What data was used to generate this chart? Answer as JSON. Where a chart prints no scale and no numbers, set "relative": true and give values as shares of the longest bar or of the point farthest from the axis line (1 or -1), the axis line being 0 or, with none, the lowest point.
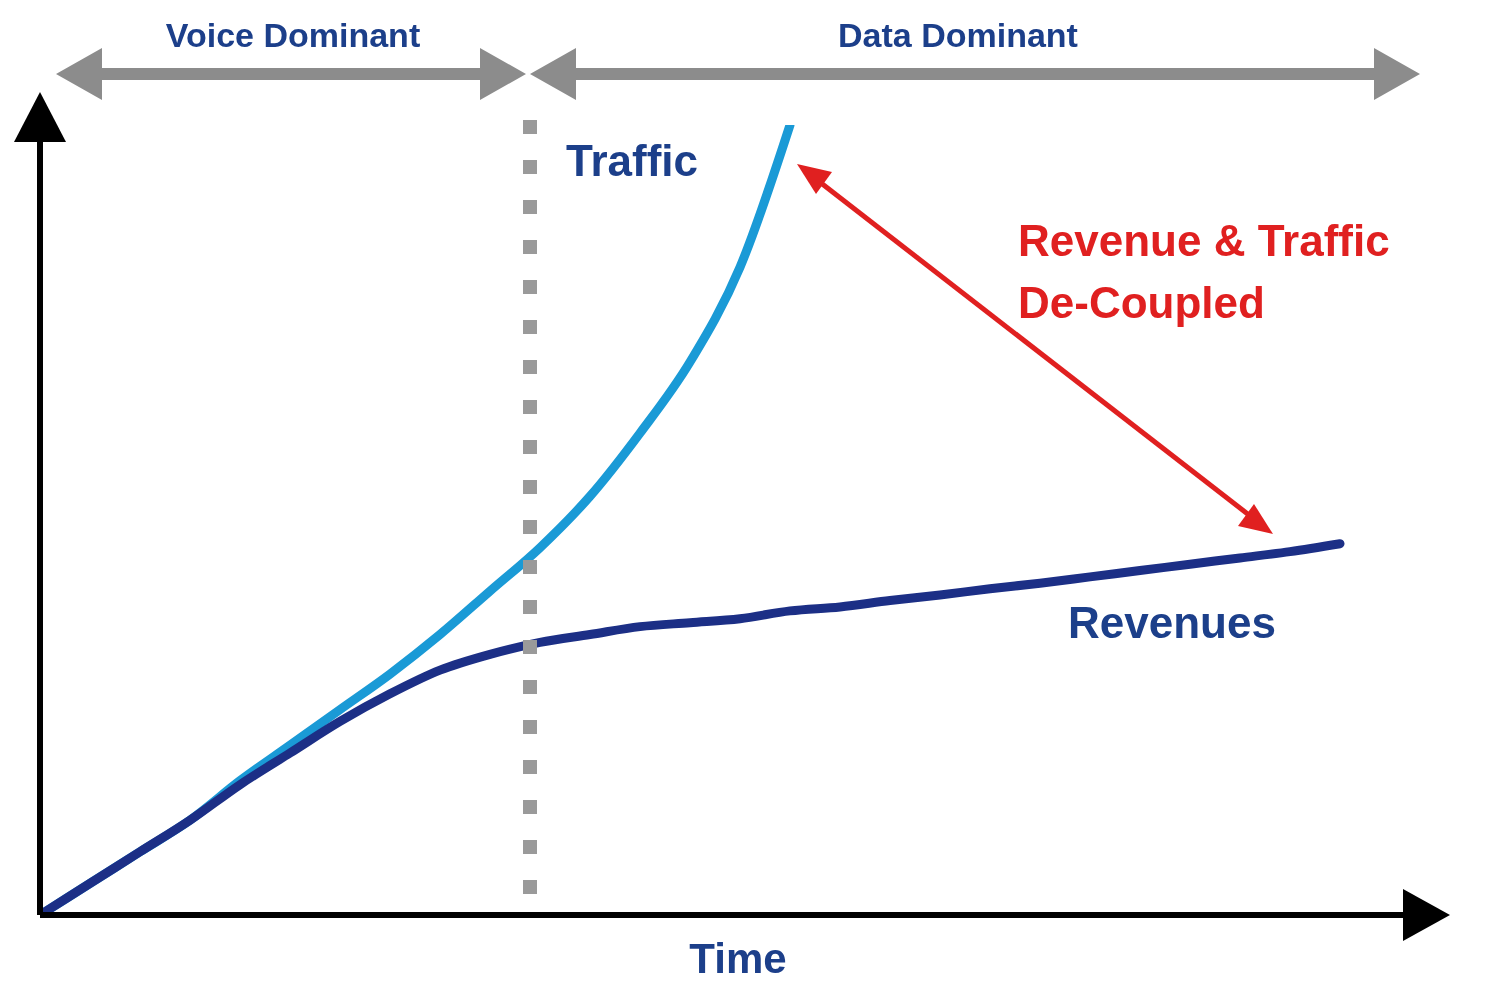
{
  "chart_data": {
    "type": "line",
    "relative": true,
    "xlabel": "Time",
    "categories": [
      null,
      null,
      null,
      null,
      null,
      null,
      null,
      null,
      null,
      null,
      null,
      null,
      null,
      null,
      null,
      null,
      null,
      null,
      null,
      null,
      null,
      null,
      null,
      null,
      null,
      null,
      null
    ],
    "series": [
      {
        "name": "Traffic",
        "color": "#1a9ad6",
        "values": [
          0,
          0.04,
          0.08,
          0.12,
          0.17,
          0.215,
          0.26,
          0.305,
          0.355,
          0.41,
          0.465,
          0.53,
          0.61,
          0.7,
          0.82,
          1,
          null,
          null,
          null,
          null,
          null,
          null,
          null,
          null,
          null,
          null,
          null
        ]
      },
      {
        "name": "Revenues",
        "color": "#1c2f86",
        "values": [
          0,
          0.04,
          0.08,
          0.12,
          0.165,
          0.205,
          0.245,
          0.28,
          0.31,
          0.33,
          0.345,
          0.355,
          0.365,
          0.37,
          0.375,
          0.385,
          0.39,
          0.398,
          0.405,
          0.413,
          0.42,
          0.428,
          0.436,
          0.444,
          0.452,
          0.46,
          0.47
        ]
      }
    ],
    "annotations": [
      "Voice Dominant",
      "Data Dominant",
      "Revenue & Traffic De-Coupled"
    ]
  }
}
